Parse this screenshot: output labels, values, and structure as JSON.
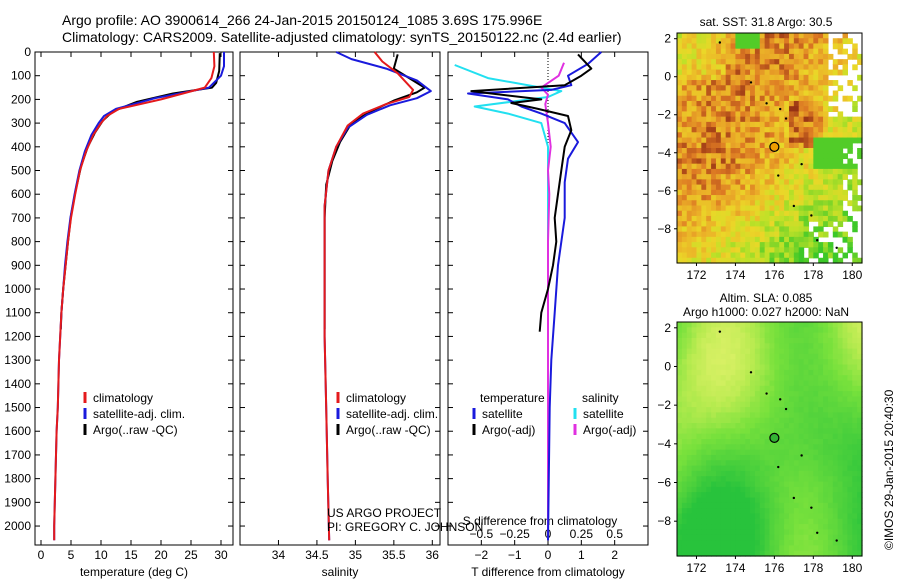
{
  "header": {
    "line1": "Argo profile: AO 3900614_266 24-Jan-2015 20150124_1085 3.69S 175.996E",
    "line2": "Climatology: CARS2009. Satellite-adjusted climatology: synTS_20150122.nc (2.4d earlier)"
  },
  "credit": {
    "line1": "US ARGO PROJECT",
    "line2": "PI: GREGORY C. JOHNSON",
    "stamp": "©IMOS 29-Jan-2015 20:40:30"
  },
  "colors": {
    "climatology": "#e41a1c",
    "satellite": "#1a1adc",
    "argo": "#000000",
    "satellite_s": "#22e0f0",
    "argo_s": "#e030e0"
  },
  "chart_data": [
    {
      "id": "temperature",
      "type": "line",
      "xlabel": "temperature (deg C)",
      "xlim": [
        -1,
        32
      ],
      "xticks": [
        0,
        5,
        10,
        15,
        20,
        25,
        30
      ],
      "ylim": [
        0,
        2080
      ],
      "yticks": [
        0,
        100,
        200,
        300,
        400,
        500,
        600,
        700,
        800,
        900,
        1000,
        1100,
        1200,
        1300,
        1400,
        1500,
        1600,
        1700,
        1800,
        1900,
        2000
      ],
      "y_inverted": true,
      "legend": [
        "climatology",
        "satellite-adj. clim.",
        "Argo(..raw -QC)"
      ],
      "series": [
        {
          "name": "climatology",
          "color": "#e41a1c",
          "points": [
            [
              28.8,
              0
            ],
            [
              28.9,
              60
            ],
            [
              28.4,
              110
            ],
            [
              27.3,
              150
            ],
            [
              20,
              200
            ],
            [
              13,
              240
            ],
            [
              11,
              270
            ],
            [
              10,
              300
            ],
            [
              8.7,
              350
            ],
            [
              7.5,
              420
            ],
            [
              6.5,
              500
            ],
            [
              5.7,
              600
            ],
            [
              5,
              700
            ],
            [
              4.5,
              800
            ],
            [
              4.1,
              900
            ],
            [
              3.7,
              1000
            ],
            [
              3.4,
              1100
            ],
            [
              3.2,
              1200
            ],
            [
              3,
              1300
            ],
            [
              2.9,
              1400
            ],
            [
              2.8,
              1500
            ],
            [
              2.6,
              1600
            ],
            [
              2.5,
              1700
            ],
            [
              2.4,
              1800
            ],
            [
              2.3,
              1900
            ],
            [
              2.2,
              2000
            ],
            [
              2.2,
              2060
            ]
          ]
        },
        {
          "name": "satellite-adj. clim.",
          "color": "#1a1adc",
          "points": [
            [
              30.5,
              0
            ],
            [
              30.5,
              60
            ],
            [
              30,
              100
            ],
            [
              28,
              150
            ],
            [
              19,
              195
            ],
            [
              12.5,
              240
            ],
            [
              10.5,
              270
            ],
            [
              9.6,
              300
            ],
            [
              8.4,
              350
            ],
            [
              7.3,
              420
            ],
            [
              6.4,
              500
            ],
            [
              5.6,
              600
            ],
            [
              4.9,
              700
            ],
            [
              4.4,
              800
            ],
            [
              4,
              900
            ],
            [
              3.7,
              1000
            ],
            [
              3.4,
              1100
            ],
            [
              3.2,
              1200
            ],
            [
              3,
              1300
            ],
            [
              2.9,
              1400
            ],
            [
              2.8,
              1500
            ],
            [
              2.6,
              1600
            ],
            [
              2.5,
              1700
            ],
            [
              2.4,
              1800
            ],
            [
              2.3,
              1900
            ],
            [
              2.2,
              2000
            ],
            [
              2.2,
              2060
            ]
          ]
        },
        {
          "name": "Argo(..raw -QC)",
          "color": "#000000",
          "points": [
            [
              29.8,
              5
            ],
            [
              29.7,
              80
            ],
            [
              29.2,
              130
            ],
            [
              28.5,
              150
            ],
            [
              22,
              175
            ],
            [
              16,
              210
            ],
            [
              12,
              250
            ],
            [
              10.3,
              290
            ],
            [
              9,
              340
            ],
            [
              7.8,
              400
            ],
            [
              6.7,
              480
            ],
            [
              5.8,
              580
            ],
            [
              5,
              690
            ],
            [
              4.5,
              800
            ],
            [
              4.1,
              900
            ],
            [
              3.7,
              1000
            ],
            [
              3.4,
              1100
            ],
            [
              3.3,
              1170
            ]
          ]
        }
      ]
    },
    {
      "id": "salinity",
      "type": "line",
      "xlabel": "salinity",
      "xlim": [
        33.5,
        36.1
      ],
      "xticks": [
        34,
        34.5,
        35,
        35.5,
        36
      ],
      "ylim": [
        0,
        2080
      ],
      "y_inverted": true,
      "legend": [
        "climatology",
        "satellite-adj. clim.",
        "Argo(..raw -QC)"
      ],
      "series": [
        {
          "name": "climatology",
          "color": "#e41a1c",
          "points": [
            [
              35.25,
              0
            ],
            [
              35.35,
              40
            ],
            [
              35.55,
              90
            ],
            [
              35.75,
              160
            ],
            [
              35.7,
              190
            ],
            [
              35.4,
              220
            ],
            [
              35.1,
              260
            ],
            [
              34.9,
              310
            ],
            [
              34.75,
              400
            ],
            [
              34.65,
              500
            ],
            [
              34.6,
              650
            ],
            [
              34.6,
              900
            ],
            [
              34.6,
              1200
            ],
            [
              34.62,
              1500
            ],
            [
              34.64,
              1800
            ],
            [
              34.66,
              2060
            ]
          ]
        },
        {
          "name": "satellite-adj. clim.",
          "color": "#1a1adc",
          "points": [
            [
              34.75,
              0
            ],
            [
              34.95,
              30
            ],
            [
              35.4,
              70
            ],
            [
              35.8,
              120
            ],
            [
              35.98,
              165
            ],
            [
              35.8,
              195
            ],
            [
              35.45,
              225
            ],
            [
              35.15,
              265
            ],
            [
              34.9,
              320
            ],
            [
              34.75,
              400
            ],
            [
              34.65,
              500
            ],
            [
              34.6,
              650
            ],
            [
              34.6,
              900
            ],
            [
              34.6,
              1200
            ],
            [
              34.62,
              1500
            ],
            [
              34.64,
              1800
            ],
            [
              34.66,
              2060
            ]
          ]
        },
        {
          "name": "Argo(..raw -QC)",
          "color": "#000000",
          "points": [
            [
              35.55,
              10
            ],
            [
              35.5,
              70
            ],
            [
              35.7,
              110
            ],
            [
              35.9,
              150
            ],
            [
              35.8,
              170
            ],
            [
              35.5,
              205
            ],
            [
              35.2,
              250
            ],
            [
              34.95,
              300
            ],
            [
              34.8,
              380
            ],
            [
              34.7,
              460
            ],
            [
              34.62,
              560
            ],
            [
              34.6,
              700
            ],
            [
              34.6,
              900
            ],
            [
              34.6,
              1100
            ],
            [
              34.6,
              1170
            ]
          ]
        }
      ]
    },
    {
      "id": "difference",
      "type": "line",
      "xlabel": "T difference from climatology",
      "x2label": "S difference from climatology",
      "xlim": [
        -3,
        3
      ],
      "xticks": [
        -2,
        -1,
        0,
        1,
        2
      ],
      "x2lim": [
        -0.75,
        0.75
      ],
      "x2ticks": [
        -0.5,
        -0.25,
        0,
        0.25,
        0.5
      ],
      "ylim": [
        0,
        2080
      ],
      "y_inverted": true,
      "legend_left_title": "temperature",
      "legend_right_title": "salinity",
      "legend": [
        "satellite",
        "Argo(-adj)",
        "satellite",
        "Argo(-adj)"
      ],
      "series": [
        {
          "name": "satellite",
          "axis": "T",
          "color": "#1a1adc",
          "points": [
            [
              1.6,
              0
            ],
            [
              1.2,
              50
            ],
            [
              0.6,
              100
            ],
            [
              0.7,
              140
            ],
            [
              0.1,
              160
            ],
            [
              -2.4,
              175
            ],
            [
              -1.2,
              200
            ],
            [
              -0.8,
              230
            ],
            [
              -0.2,
              260
            ],
            [
              0.5,
              300
            ],
            [
              0.9,
              380
            ],
            [
              0.6,
              450
            ],
            [
              0.5,
              550
            ],
            [
              0.5,
              700
            ],
            [
              0.3,
              900
            ],
            [
              0.2,
              1100
            ],
            [
              0.1,
              1300
            ],
            [
              0.05,
              1500
            ],
            [
              0,
              2060
            ]
          ]
        },
        {
          "name": "Argo(-adj)",
          "axis": "T",
          "color": "#000000",
          "points": [
            [
              0.9,
              10
            ],
            [
              1.3,
              70
            ],
            [
              1.0,
              100
            ],
            [
              0.5,
              140
            ],
            [
              -2.3,
              165
            ],
            [
              -0.2,
              200
            ],
            [
              -1.1,
              215
            ],
            [
              -0.3,
              240
            ],
            [
              0.6,
              270
            ],
            [
              0.7,
              330
            ],
            [
              0.5,
              400
            ],
            [
              0.4,
              500
            ],
            [
              0.3,
              600
            ],
            [
              0.2,
              700
            ],
            [
              0.25,
              800
            ],
            [
              0.15,
              900
            ],
            [
              0,
              1000
            ],
            [
              -0.2,
              1100
            ],
            [
              -0.25,
              1180
            ]
          ]
        },
        {
          "name": "satellite",
          "axis": "S",
          "color": "#22e0f0",
          "points": [
            [
              -0.7,
              55
            ],
            [
              -0.45,
              110
            ],
            [
              -0.05,
              150
            ],
            [
              0.1,
              165
            ],
            [
              0,
              190
            ],
            [
              -0.55,
              230
            ],
            [
              -0.3,
              260
            ],
            [
              -0.05,
              300
            ],
            [
              0,
              400
            ],
            [
              0,
              700
            ],
            [
              0,
              1000
            ],
            [
              0,
              1300
            ],
            [
              0,
              2060
            ]
          ]
        },
        {
          "name": "Argo(-adj)",
          "axis": "S",
          "color": "#e030e0",
          "points": [
            [
              0.12,
              45
            ],
            [
              0.08,
              100
            ],
            [
              -0.05,
              150
            ],
            [
              0,
              180
            ],
            [
              -0.02,
              220
            ],
            [
              0,
              300
            ],
            [
              0.02,
              400
            ],
            [
              0,
              500
            ],
            [
              0.01,
              600
            ],
            [
              0,
              800
            ],
            [
              0,
              1000
            ],
            [
              0,
              1200
            ],
            [
              0,
              1400
            ],
            [
              0,
              1600
            ],
            [
              0,
              1800
            ],
            [
              0,
              2000
            ],
            [
              0,
              2060
            ]
          ]
        }
      ]
    },
    {
      "id": "sst-map",
      "type": "heatmap",
      "title": "sat. SST: 31.8 Argo: 30.5",
      "xlim": [
        171,
        180.5
      ],
      "ylim": [
        -9.8,
        2.3
      ],
      "xticks": [
        172,
        174,
        176,
        178,
        180
      ],
      "yticks": [
        2,
        0,
        -2,
        -4,
        -6,
        -8
      ],
      "marker": {
        "lon": 176.0,
        "lat": -3.69,
        "fill": "#ee9e00"
      }
    },
    {
      "id": "sla-map",
      "type": "heatmap",
      "title1": "Altim. SLA: 0.085",
      "title2": "Argo h1000: 0.027 h2000: NaN",
      "xlim": [
        171,
        180.5
      ],
      "ylim": [
        -9.8,
        2.3
      ],
      "xticks": [
        172,
        174,
        176,
        178,
        180
      ],
      "yticks": [
        2,
        0,
        -2,
        -4,
        -6,
        -8
      ],
      "marker": {
        "lon": 176.0,
        "lat": -3.69,
        "fill": "#33b233"
      }
    }
  ]
}
